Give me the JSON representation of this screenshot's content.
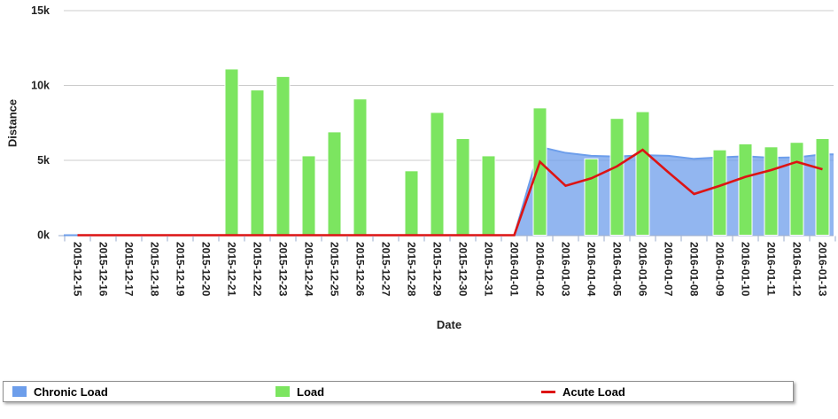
{
  "chart_data": {
    "type": "combo",
    "title": "",
    "xlabel": "Date",
    "ylabel": "Distance",
    "ylim": [
      0,
      15000
    ],
    "grid": true,
    "legend_position": "bottom",
    "y_ticks": [
      {
        "value": 0,
        "label": "0k"
      },
      {
        "value": 5000,
        "label": "5k"
      },
      {
        "value": 10000,
        "label": "10k"
      },
      {
        "value": 15000,
        "label": "15k"
      }
    ],
    "x": [
      "2015-12-15",
      "2015-12-16",
      "2015-12-17",
      "2015-12-18",
      "2015-12-19",
      "2015-12-20",
      "2015-12-21",
      "2015-12-22",
      "2015-12-23",
      "2015-12-24",
      "2015-12-25",
      "2015-12-26",
      "2015-12-27",
      "2015-12-28",
      "2015-12-29",
      "2015-12-30",
      "2015-12-31",
      "2016-01-01",
      "2016-01-02",
      "2016-01-03",
      "2016-01-04",
      "2016-01-05",
      "2016-01-06",
      "2016-01-07",
      "2016-01-08",
      "2016-01-09",
      "2016-01-10",
      "2016-01-11",
      "2016-01-12",
      "2016-01-13"
    ],
    "series": [
      {
        "name": "Chronic Load",
        "type": "area",
        "color": "#6d9eeb",
        "fill_opacity": 0.75,
        "values": [
          0,
          0,
          0,
          0,
          0,
          0,
          0,
          0,
          0,
          0,
          0,
          0,
          0,
          0,
          0,
          0,
          0,
          0,
          5900,
          5500,
          5300,
          5250,
          5350,
          5300,
          5100,
          5200,
          5270,
          5170,
          5200,
          5400
        ]
      },
      {
        "name": "Load",
        "type": "bar",
        "color": "#7ce560",
        "values": [
          0,
          0,
          0,
          0,
          0,
          0,
          11100,
          9700,
          10600,
          5300,
          6900,
          9100,
          0,
          4300,
          8200,
          6450,
          5300,
          0,
          8500,
          0,
          5100,
          7800,
          8250,
          0,
          0,
          5700,
          6100,
          5900,
          6200,
          6450
        ]
      },
      {
        "name": "Acute Load",
        "type": "line",
        "color": "#dd1414",
        "values": [
          0,
          0,
          0,
          0,
          0,
          0,
          0,
          0,
          0,
          0,
          0,
          0,
          0,
          0,
          0,
          0,
          0,
          0,
          4900,
          3300,
          3800,
          4600,
          5700,
          4200,
          2750,
          3300,
          3900,
          4350,
          4900,
          4400
        ]
      }
    ]
  },
  "axes": {
    "y_title": "Distance",
    "x_title": "Date"
  },
  "legend": {
    "items": [
      {
        "label": "Chronic Load",
        "color": "#6d9eeb",
        "shape": "square"
      },
      {
        "label": "Load",
        "color": "#7ce560",
        "shape": "square"
      },
      {
        "label": "Acute Load",
        "color": "#dd1414",
        "shape": "line"
      }
    ]
  },
  "style_colors": {
    "grid": "#cccccc",
    "axis_line": "#aebdd6",
    "tick_mark": "#a9b9d4",
    "axis_text": "#222222"
  }
}
